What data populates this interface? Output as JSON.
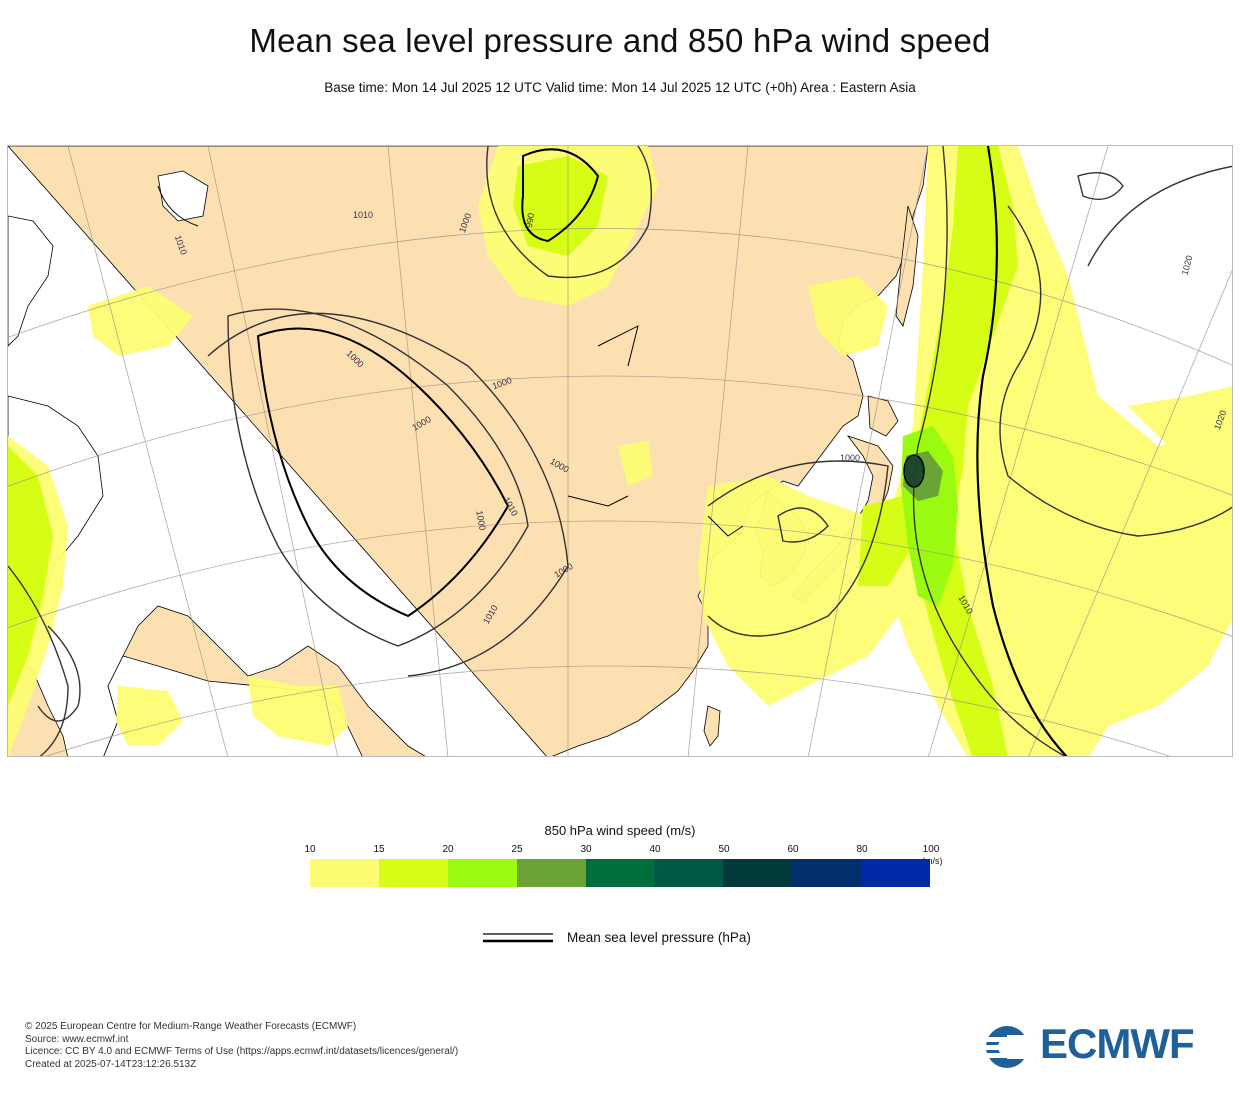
{
  "header": {
    "title": "Mean sea level pressure and 850 hPa wind speed",
    "subtitle": "Base time: Mon 14 Jul 2025 12 UTC Valid time: Mon 14 Jul 2025 12 UTC (+0h) Area : Eastern Asia"
  },
  "map": {
    "region": "Eastern Asia",
    "colors": {
      "land": "#fde0b2",
      "ocean": "#ffffff",
      "wind_10_15": "#fdfd73",
      "wind_15_20": "#d6fd16",
      "wind_20_25": "#9afb10",
      "wind_25_30": "#6aa336",
      "isobar": "#333333",
      "coast": "#000000"
    },
    "isobar_labels": [
      "1010",
      "1010",
      "1000",
      "1000",
      "1000",
      "1000",
      "1000",
      "1010",
      "1000",
      "1010",
      "1000",
      "1010",
      "990",
      "1000",
      "1020",
      "1020"
    ]
  },
  "legend": {
    "title": "850 hPa wind speed (m/s)",
    "ticks": [
      "10",
      "15",
      "20",
      "25",
      "30",
      "40",
      "50",
      "60",
      "80",
      "100"
    ],
    "unit": "(m/s)",
    "colors": [
      "#fdfd73",
      "#d6fd16",
      "#9afb10",
      "#6aa336",
      "#006d3c",
      "#005a43",
      "#003a3a",
      "#002f6c",
      "#002ba6"
    ],
    "line_label": "Mean sea level pressure (hPa)"
  },
  "footer": {
    "line1": "© 2025 European Centre for Medium-Range Weather Forecasts (ECMWF)",
    "line2": "Source: www.ecmwf.int",
    "line3": "Licence: CC BY 4.0 and ECMWF Terms of Use (https://apps.ecmwf.int/datasets/licences/general/)",
    "line4": "Created at 2025-07-14T23:12:26.513Z",
    "logo_text": "ECMWF"
  }
}
